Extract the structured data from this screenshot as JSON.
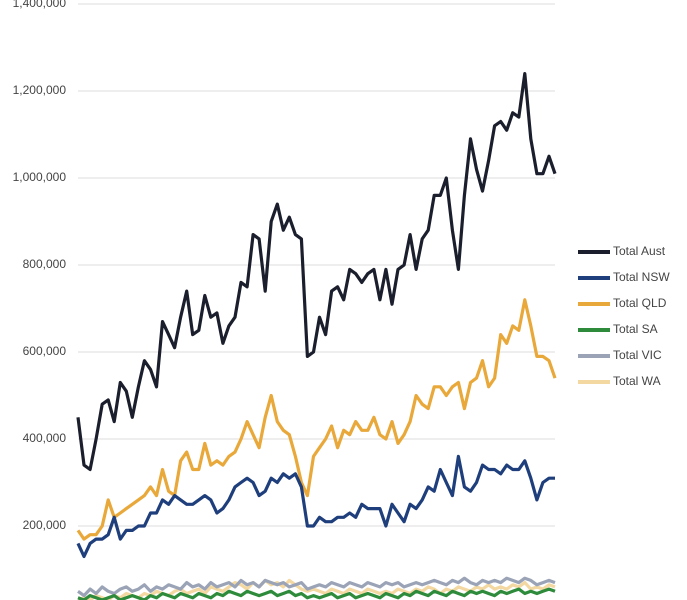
{
  "chart_data": {
    "type": "line",
    "categories": [
      null,
      null,
      null,
      null,
      null,
      null,
      null,
      null,
      null,
      null,
      null,
      null,
      null,
      null,
      null,
      null,
      null,
      null,
      null,
      null,
      null,
      null,
      null,
      null,
      null,
      null,
      null,
      null,
      null,
      null,
      null,
      null,
      null,
      null,
      null,
      null,
      null,
      null,
      null,
      null,
      null,
      null,
      null,
      null,
      null,
      null,
      null,
      null,
      null,
      null,
      null,
      null,
      null,
      null,
      null,
      null,
      null,
      null,
      null,
      null,
      null,
      null,
      null,
      null,
      null,
      null,
      null,
      null,
      null,
      null,
      null,
      null,
      null,
      null,
      null,
      null,
      null,
      null,
      null,
      null
    ],
    "series": [
      {
        "name": "Total Aust",
        "color": "#1b1f2d",
        "values": [
          450000,
          340000,
          330000,
          400000,
          480000,
          490000,
          440000,
          530000,
          510000,
          450000,
          520000,
          580000,
          560000,
          520000,
          670000,
          640000,
          610000,
          680000,
          740000,
          640000,
          650000,
          730000,
          680000,
          690000,
          620000,
          660000,
          680000,
          760000,
          750000,
          870000,
          860000,
          740000,
          900000,
          940000,
          880000,
          910000,
          870000,
          860000,
          590000,
          600000,
          680000,
          640000,
          740000,
          750000,
          720000,
          790000,
          780000,
          760000,
          780000,
          790000,
          720000,
          790000,
          710000,
          790000,
          800000,
          870000,
          790000,
          860000,
          880000,
          960000,
          960000,
          1000000,
          880000,
          790000,
          960000,
          1090000,
          1020000,
          970000,
          1040000,
          1120000,
          1130000,
          1110000,
          1150000,
          1140000,
          1240000,
          1090000,
          1010000,
          1010000,
          1050000,
          1010000
        ]
      },
      {
        "name": "Total NSW",
        "color": "#1f3f7c",
        "values": [
          160000,
          130000,
          160000,
          170000,
          170000,
          180000,
          220000,
          170000,
          190000,
          190000,
          200000,
          200000,
          230000,
          230000,
          260000,
          250000,
          270000,
          260000,
          250000,
          250000,
          260000,
          270000,
          260000,
          230000,
          240000,
          260000,
          290000,
          300000,
          310000,
          300000,
          270000,
          280000,
          310000,
          300000,
          320000,
          310000,
          320000,
          290000,
          200000,
          200000,
          220000,
          210000,
          210000,
          220000,
          220000,
          230000,
          220000,
          250000,
          240000,
          240000,
          240000,
          200000,
          250000,
          230000,
          210000,
          250000,
          240000,
          260000,
          290000,
          280000,
          330000,
          300000,
          270000,
          360000,
          290000,
          280000,
          300000,
          340000,
          330000,
          330000,
          320000,
          340000,
          330000,
          330000,
          350000,
          310000,
          260000,
          300000,
          310000,
          310000
        ]
      },
      {
        "name": "Total QLD",
        "color": "#e9a83a",
        "values": [
          190000,
          170000,
          180000,
          180000,
          200000,
          260000,
          220000,
          230000,
          240000,
          250000,
          260000,
          270000,
          290000,
          270000,
          330000,
          280000,
          270000,
          350000,
          370000,
          330000,
          330000,
          390000,
          340000,
          350000,
          340000,
          360000,
          370000,
          400000,
          440000,
          410000,
          380000,
          450000,
          500000,
          440000,
          420000,
          410000,
          360000,
          300000,
          270000,
          360000,
          380000,
          400000,
          430000,
          380000,
          420000,
          410000,
          440000,
          420000,
          420000,
          450000,
          410000,
          400000,
          440000,
          390000,
          410000,
          440000,
          500000,
          480000,
          470000,
          520000,
          520000,
          500000,
          520000,
          530000,
          470000,
          530000,
          540000,
          580000,
          520000,
          540000,
          640000,
          620000,
          660000,
          650000,
          720000,
          660000,
          590000,
          590000,
          580000,
          540000
        ]
      },
      {
        "name": "Total SA",
        "color": "#2e8b3c",
        "values": [
          35000,
          30000,
          40000,
          35000,
          30000,
          35000,
          40000,
          30000,
          35000,
          40000,
          35000,
          30000,
          40000,
          35000,
          45000,
          40000,
          35000,
          45000,
          40000,
          35000,
          45000,
          40000,
          35000,
          45000,
          40000,
          50000,
          45000,
          40000,
          50000,
          45000,
          40000,
          45000,
          50000,
          40000,
          45000,
          50000,
          40000,
          45000,
          35000,
          40000,
          35000,
          40000,
          45000,
          35000,
          40000,
          45000,
          35000,
          40000,
          45000,
          40000,
          35000,
          45000,
          40000,
          35000,
          45000,
          40000,
          50000,
          45000,
          40000,
          50000,
          45000,
          40000,
          50000,
          45000,
          40000,
          50000,
          45000,
          50000,
          45000,
          40000,
          50000,
          45000,
          50000,
          55000,
          45000,
          50000,
          45000,
          50000,
          55000,
          50000
        ]
      },
      {
        "name": "Total VIC",
        "color": "#9ba4b6",
        "values": [
          50000,
          40000,
          55000,
          45000,
          60000,
          50000,
          45000,
          55000,
          60000,
          50000,
          55000,
          65000,
          50000,
          60000,
          55000,
          65000,
          60000,
          55000,
          70000,
          60000,
          65000,
          55000,
          70000,
          60000,
          65000,
          70000,
          60000,
          75000,
          65000,
          70000,
          60000,
          75000,
          70000,
          65000,
          70000,
          60000,
          65000,
          70000,
          55000,
          60000,
          65000,
          60000,
          70000,
          65000,
          60000,
          70000,
          65000,
          60000,
          70000,
          65000,
          60000,
          70000,
          65000,
          70000,
          60000,
          65000,
          70000,
          65000,
          70000,
          75000,
          70000,
          65000,
          75000,
          70000,
          80000,
          70000,
          65000,
          75000,
          70000,
          75000,
          70000,
          80000,
          75000,
          70000,
          80000,
          75000,
          65000,
          70000,
          75000,
          70000
        ]
      },
      {
        "name": "Total WA",
        "color": "#f4d8a2",
        "values": [
          30000,
          35000,
          30000,
          40000,
          35000,
          30000,
          40000,
          35000,
          45000,
          40000,
          35000,
          45000,
          40000,
          50000,
          45000,
          40000,
          50000,
          55000,
          45000,
          50000,
          55000,
          45000,
          60000,
          55000,
          50000,
          60000,
          70000,
          65000,
          55000,
          70000,
          60000,
          75000,
          65000,
          70000,
          60000,
          75000,
          65000,
          55000,
          50000,
          55000,
          50000,
          45000,
          55000,
          50000,
          45000,
          55000,
          50000,
          45000,
          55000,
          50000,
          45000,
          50000,
          45000,
          55000,
          50000,
          45000,
          55000,
          50000,
          60000,
          55000,
          45000,
          55000,
          50000,
          60000,
          55000,
          50000,
          60000,
          55000,
          65000,
          55000,
          60000,
          55000,
          65000,
          60000,
          70000,
          55000,
          60000,
          55000,
          65000,
          60000
        ]
      }
    ],
    "ylim": [
      30000,
      1400000
    ],
    "yticks": [
      {
        "value": 200000,
        "label": "200,000"
      },
      {
        "value": 400000,
        "label": "400,000"
      },
      {
        "value": 600000,
        "label": "600,000"
      },
      {
        "value": 800000,
        "label": "800,000"
      },
      {
        "value": 1000000,
        "label": "1,000,000"
      },
      {
        "value": 1200000,
        "label": "1,200,000"
      },
      {
        "value": 1400000,
        "label": "1,400,000"
      }
    ],
    "grid": true,
    "legend": "right"
  }
}
